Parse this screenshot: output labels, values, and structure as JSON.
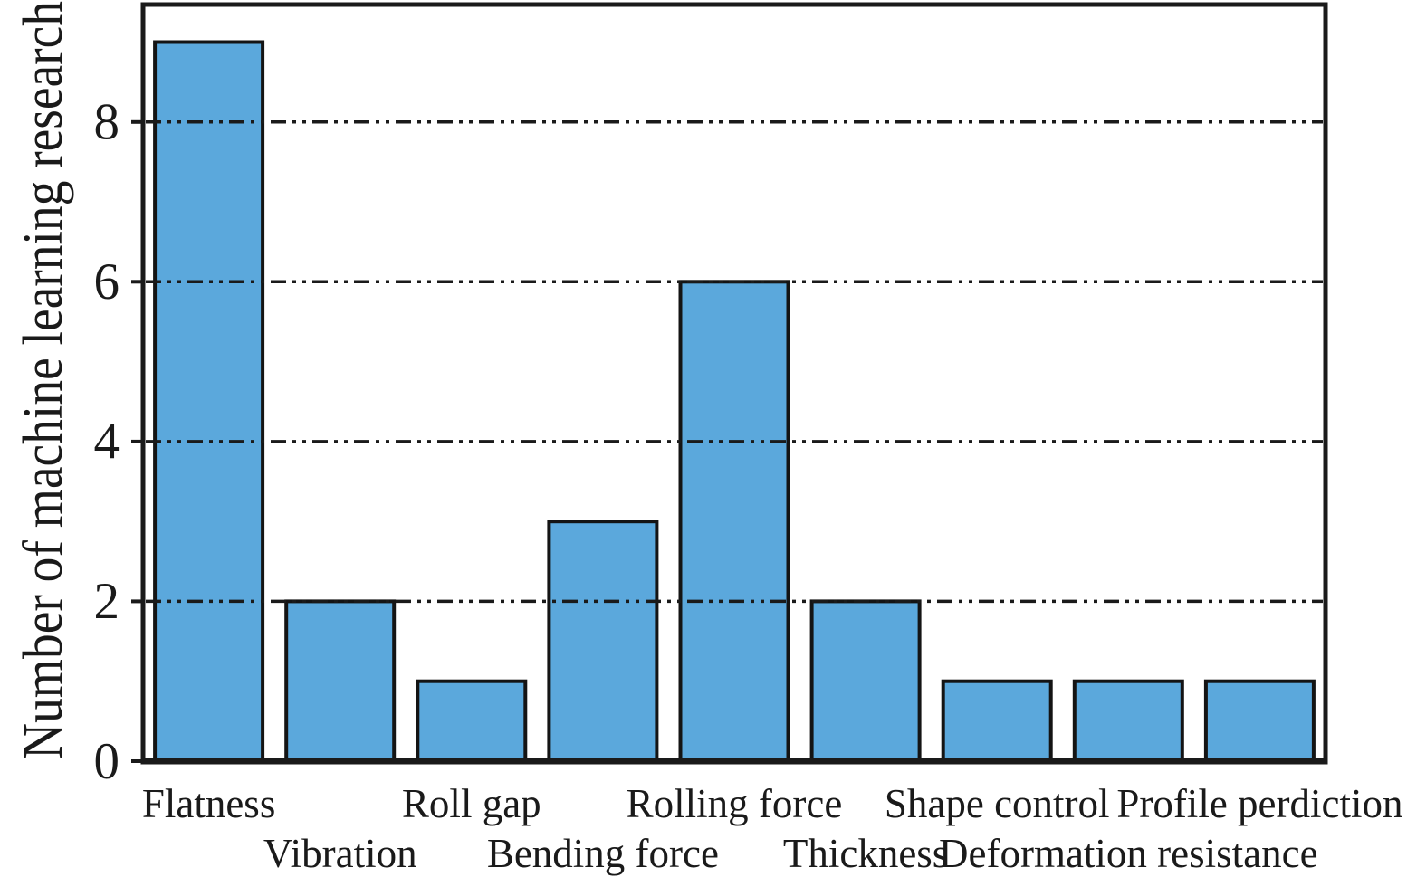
{
  "chart_data": {
    "type": "bar",
    "title": "",
    "xlabel": "",
    "ylabel": "Number of machine learning research",
    "categories": [
      "Flatness",
      "Vibration",
      "Roll gap",
      "Bending force",
      "Rolling force",
      "Thickness",
      "Shape control",
      "Deformation resistance",
      "Profile perdiction"
    ],
    "values": [
      9,
      2,
      1,
      3,
      6,
      2,
      1,
      1,
      1
    ],
    "yticks": [
      0,
      2,
      4,
      6,
      8
    ],
    "gridlines_at": [
      2,
      4,
      6,
      8
    ],
    "grid_style": "dash-dot-dot",
    "ylim": [
      0,
      9.47
    ],
    "legend": "none",
    "bar_color": "#5BA8DC",
    "bar_border_color": "#141414",
    "axis_color": "#1a1a1a",
    "background_color": "#ffffff"
  }
}
